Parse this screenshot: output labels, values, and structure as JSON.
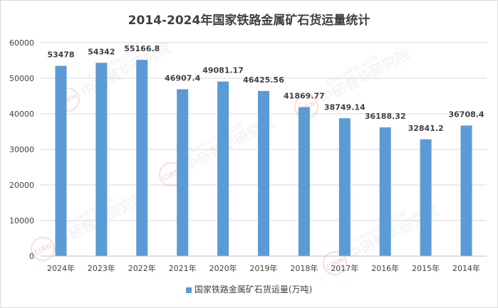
{
  "chart_data": {
    "type": "bar",
    "title": "2014-2024年国家铁路金属矿石货运量统计",
    "categories": [
      "2024年",
      "2023年",
      "2022年",
      "2021年",
      "2020年",
      "2019年",
      "2018年",
      "2017年",
      "2016年",
      "2015年",
      "2014年"
    ],
    "series": [
      {
        "name": "国家铁路金属矿石货运量(万吨)",
        "values": [
          53478,
          54342,
          55166.8,
          46907.4,
          49081.17,
          46425.56,
          41869.77,
          38749.14,
          36188.32,
          32841.2,
          36708.4
        ],
        "labels": [
          "53478",
          "54342",
          "55166.8",
          "46907.4",
          "49081.17",
          "46425.56",
          "41869.77",
          "38749.14",
          "36188.32",
          "32841.2",
          "36708.4"
        ]
      }
    ],
    "ylim": [
      0,
      60000
    ],
    "yticks": [
      "0",
      "10000",
      "20000",
      "30000",
      "40000",
      "50000",
      "60000"
    ],
    "grid": true,
    "legend_position": "bottom",
    "bar_color": "#5b9bd5"
  },
  "watermark": {
    "text": "中研普华研究院",
    "url_text": "ChinaIRN.COM",
    "badge": "CIRN"
  }
}
